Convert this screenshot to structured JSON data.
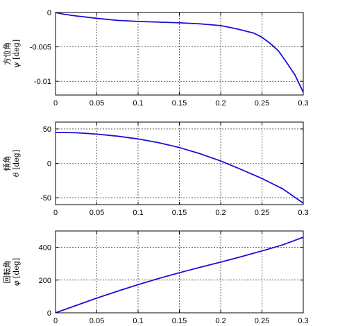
{
  "chart_data": [
    {
      "type": "line",
      "ylabel_name": "方位角",
      "ylabel_symbol": "ψ",
      "ylabel_unit": "[deg]",
      "xlim": [
        0,
        0.3
      ],
      "ylim": [
        -0.012,
        0
      ],
      "xticks": [
        0,
        0.05,
        0.1,
        0.15,
        0.2,
        0.25,
        0.3
      ],
      "xtick_labels": [
        "0",
        "0.05",
        "0.1",
        "0.15",
        "0.2",
        "0.25",
        "0.3"
      ],
      "yticks": [
        0,
        -0.005,
        -0.01
      ],
      "ytick_labels": [
        "0",
        "-0.005",
        "-0.01"
      ],
      "grid": true,
      "series": [
        {
          "color": "#1a0fd6",
          "x": [
            0,
            0.01,
            0.025,
            0.05,
            0.075,
            0.1,
            0.125,
            0.15,
            0.175,
            0.2,
            0.22,
            0.24,
            0.25,
            0.26,
            0.27,
            0.28,
            0.29,
            0.3
          ],
          "y": [
            0,
            -0.00025,
            -0.0005,
            -0.00085,
            -0.00115,
            -0.0013,
            -0.0014,
            -0.0015,
            -0.00165,
            -0.0019,
            -0.0024,
            -0.003,
            -0.0036,
            -0.0045,
            -0.0056,
            -0.0073,
            -0.0091,
            -0.0116
          ]
        }
      ]
    },
    {
      "type": "line",
      "ylabel_name": "傾角",
      "ylabel_symbol": "θ",
      "ylabel_unit": "[deg]",
      "xlim": [
        0,
        0.3
      ],
      "ylim": [
        -60,
        60
      ],
      "xticks": [
        0,
        0.05,
        0.1,
        0.15,
        0.2,
        0.25,
        0.3
      ],
      "xtick_labels": [
        "0",
        "0.05",
        "0.1",
        "0.15",
        "0.2",
        "0.25",
        "0.3"
      ],
      "yticks": [
        50,
        0,
        -50
      ],
      "ytick_labels": [
        "50",
        "0",
        "-50"
      ],
      "grid": true,
      "series": [
        {
          "color": "#1a0fd6",
          "x": [
            0,
            0.025,
            0.05,
            0.075,
            0.1,
            0.125,
            0.15,
            0.175,
            0.2,
            0.225,
            0.25,
            0.275,
            0.3
          ],
          "y": [
            45,
            44.5,
            42.5,
            39.5,
            35.5,
            30,
            23,
            14,
            3.5,
            -9,
            -22,
            -37,
            -58
          ]
        }
      ]
    },
    {
      "type": "line",
      "ylabel_name": "回転角",
      "ylabel_symbol": "φ",
      "ylabel_unit": "[deg]",
      "xlim": [
        0,
        0.3
      ],
      "ylim": [
        0,
        500
      ],
      "xticks": [
        0,
        0.05,
        0.1,
        0.15,
        0.2,
        0.25,
        0.3
      ],
      "xtick_labels": [
        "0",
        "0.05",
        "0.1",
        "0.15",
        "0.2",
        "0.25",
        "0.3"
      ],
      "yticks": [
        0,
        200,
        400
      ],
      "ytick_labels": [
        "0",
        "200",
        "400"
      ],
      "grid": true,
      "series": [
        {
          "color": "#1a0fd6",
          "x": [
            0,
            0.025,
            0.05,
            0.075,
            0.1,
            0.125,
            0.15,
            0.175,
            0.2,
            0.225,
            0.25,
            0.275,
            0.3
          ],
          "y": [
            0,
            45,
            90,
            132,
            172,
            210,
            245,
            278,
            310,
            343,
            378,
            415,
            462
          ]
        }
      ]
    }
  ]
}
